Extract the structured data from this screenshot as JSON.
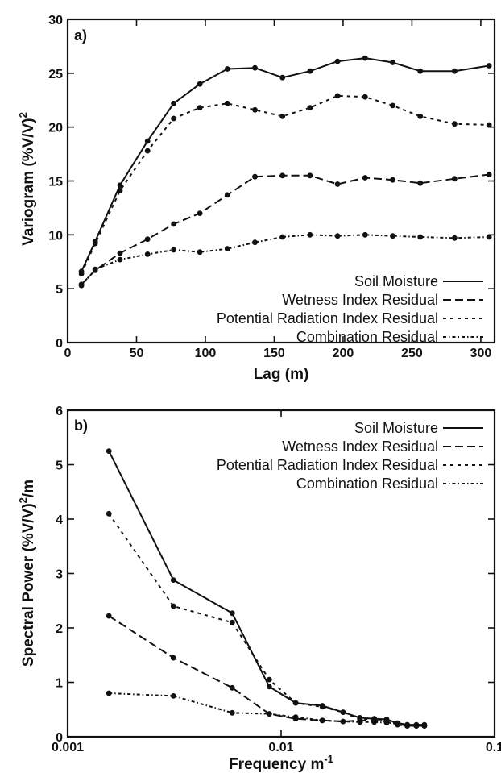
{
  "chart_data": [
    {
      "type": "line",
      "panel_label": "a)",
      "xlabel": "Lag (m)",
      "ylabel": "Variogram (%V/V)",
      "ylabel_superscript": "2",
      "xlim": [
        0,
        310
      ],
      "ylim": [
        0,
        30
      ],
      "x_ticks": [
        0,
        50,
        100,
        150,
        200,
        250,
        300
      ],
      "y_ticks": [
        0,
        5,
        10,
        15,
        20,
        25,
        30
      ],
      "x_tick_labels": [
        "0",
        "50",
        "100",
        "150",
        "200",
        "250",
        "300"
      ],
      "y_tick_labels": [
        "0",
        "5",
        "10",
        "15",
        "20",
        "25",
        "30"
      ],
      "x_scale": "linear",
      "grid": false,
      "legend_position": "bottom-right",
      "series": [
        {
          "name": "Soil Moisture",
          "dash": "solid",
          "x": [
            10,
            20,
            38,
            58,
            77,
            96,
            116,
            136,
            156,
            176,
            196,
            216,
            236,
            256,
            281,
            306
          ],
          "y": [
            6.6,
            9.4,
            14.6,
            18.7,
            22.2,
            24.0,
            25.4,
            25.5,
            24.6,
            25.2,
            26.1,
            26.4,
            26.0,
            25.2,
            25.2,
            25.7
          ]
        },
        {
          "name": "Wetness Index Residual",
          "dash": "dashed",
          "x": [
            10,
            20,
            38,
            58,
            77,
            96,
            116,
            136,
            156,
            176,
            196,
            216,
            236,
            256,
            281,
            306
          ],
          "y": [
            5.4,
            6.7,
            8.3,
            9.6,
            11.0,
            12.0,
            13.7,
            15.4,
            15.5,
            15.5,
            14.7,
            15.3,
            15.1,
            14.8,
            15.2,
            15.6
          ]
        },
        {
          "name": "Potential Radiation Index Residual",
          "dash": "dotted",
          "x": [
            10,
            20,
            38,
            58,
            77,
            96,
            116,
            136,
            156,
            176,
            196,
            216,
            236,
            256,
            281,
            306
          ],
          "y": [
            6.4,
            9.2,
            14.1,
            17.8,
            20.8,
            21.8,
            22.2,
            21.6,
            21.0,
            21.8,
            22.9,
            22.8,
            22.0,
            21.0,
            20.3,
            20.2
          ]
        },
        {
          "name": "Combination Residual",
          "dash": "dashdot",
          "x": [
            10,
            20,
            38,
            58,
            77,
            96,
            116,
            136,
            156,
            176,
            196,
            216,
            236,
            256,
            281,
            306
          ],
          "y": [
            5.3,
            6.8,
            7.7,
            8.2,
            8.6,
            8.4,
            8.7,
            9.3,
            9.8,
            10.0,
            9.9,
            10.0,
            9.9,
            9.8,
            9.7,
            9.8
          ]
        }
      ]
    },
    {
      "type": "line",
      "panel_label": "b)",
      "xlabel": "Frequency m",
      "xlabel_superscript": "-1",
      "ylabel": "Spectral Power (%V/V)",
      "ylabel_superscript": "2",
      "ylabel_suffix": "/m",
      "xlim": [
        0.001,
        0.1
      ],
      "ylim": [
        0,
        6
      ],
      "x_ticks": [
        0.001,
        0.01,
        0.1
      ],
      "y_ticks": [
        0,
        1,
        2,
        3,
        4,
        5,
        6
      ],
      "x_tick_labels": [
        "0.001",
        "0.01",
        "0.1"
      ],
      "y_tick_labels": [
        "0",
        "1",
        "2",
        "3",
        "4",
        "5",
        "6"
      ],
      "x_scale": "log",
      "grid": false,
      "legend_position": "top-right",
      "series": [
        {
          "name": "Soil Moisture",
          "dash": "solid",
          "x": [
            0.00156,
            0.00313,
            0.0059,
            0.0088,
            0.0117,
            0.0156,
            0.0195,
            0.0234,
            0.0273,
            0.0312,
            0.0351,
            0.039,
            0.043,
            0.0469
          ],
          "y": [
            5.25,
            2.88,
            2.27,
            0.92,
            0.62,
            0.57,
            0.45,
            0.35,
            0.33,
            0.32,
            0.25,
            0.22,
            0.22,
            0.22
          ]
        },
        {
          "name": "Wetness Index Residual",
          "dash": "dashed",
          "x": [
            0.00156,
            0.00313,
            0.0059,
            0.0088,
            0.0117,
            0.0156,
            0.0195,
            0.0234,
            0.0273,
            0.0312,
            0.0351,
            0.039,
            0.043,
            0.0469
          ],
          "y": [
            2.22,
            1.45,
            0.9,
            0.42,
            0.33,
            0.3,
            0.28,
            0.3,
            0.3,
            0.28,
            0.22,
            0.2,
            0.2,
            0.2
          ]
        },
        {
          "name": "Potential Radiation Index Residual",
          "dash": "dotted",
          "x": [
            0.00156,
            0.00313,
            0.0059,
            0.0088,
            0.0117,
            0.0156,
            0.0195,
            0.0234,
            0.0273,
            0.0312,
            0.0351,
            0.039,
            0.043,
            0.0469
          ],
          "y": [
            4.1,
            2.4,
            2.1,
            1.05,
            0.62,
            0.55,
            0.45,
            0.32,
            0.33,
            0.3,
            0.25,
            0.22,
            0.2,
            0.2
          ]
        },
        {
          "name": "Combination Residual",
          "dash": "dashdot",
          "x": [
            0.00156,
            0.00313,
            0.0059,
            0.0088,
            0.0117,
            0.0156,
            0.0195,
            0.0234,
            0.0273,
            0.0312,
            0.0351,
            0.039,
            0.043,
            0.0469
          ],
          "y": [
            0.8,
            0.75,
            0.44,
            0.42,
            0.36,
            0.3,
            0.28,
            0.27,
            0.27,
            0.26,
            0.24,
            0.2,
            0.2,
            0.2
          ]
        }
      ]
    }
  ]
}
